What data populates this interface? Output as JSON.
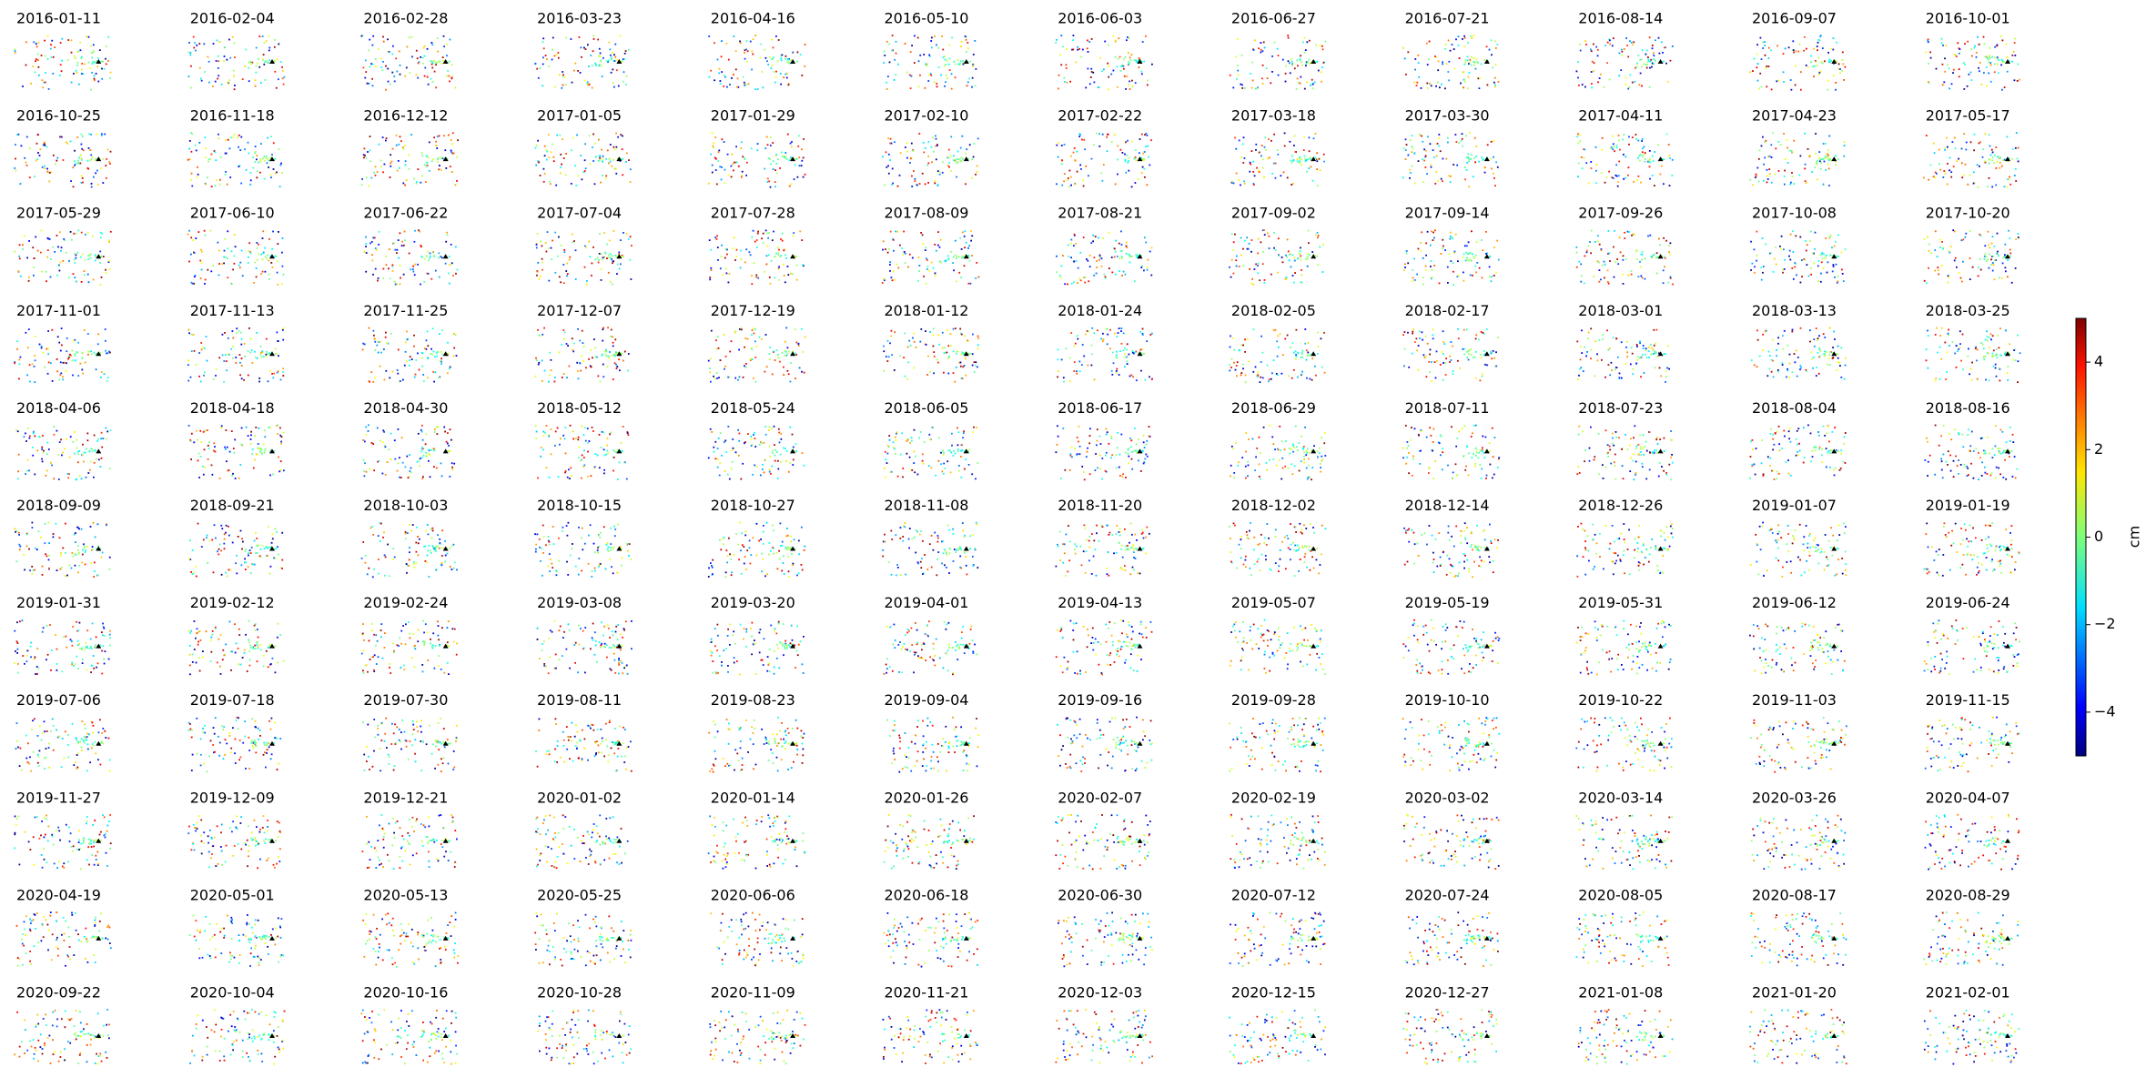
{
  "chart_data": {
    "type": "scatter-grid",
    "titles": [
      "2016-01-11",
      "2016-02-04",
      "2016-02-28",
      "2016-03-23",
      "2016-04-16",
      "2016-05-10",
      "2016-06-03",
      "2016-06-27",
      "2016-07-21",
      "2016-08-14",
      "2016-09-07",
      "2016-10-01",
      "2016-10-25",
      "2016-11-18",
      "2016-12-12",
      "2017-01-05",
      "2017-01-29",
      "2017-02-10",
      "2017-02-22",
      "2017-03-18",
      "2017-03-30",
      "2017-04-11",
      "2017-04-23",
      "2017-05-17",
      "2017-05-29",
      "2017-06-10",
      "2017-06-22",
      "2017-07-04",
      "2017-07-28",
      "2017-08-09",
      "2017-08-21",
      "2017-09-02",
      "2017-09-14",
      "2017-09-26",
      "2017-10-08",
      "2017-10-20",
      "2017-11-01",
      "2017-11-13",
      "2017-11-25",
      "2017-12-07",
      "2017-12-19",
      "2018-01-12",
      "2018-01-24",
      "2018-02-05",
      "2018-02-17",
      "2018-03-01",
      "2018-03-13",
      "2018-03-25",
      "2018-04-06",
      "2018-04-18",
      "2018-04-30",
      "2018-05-12",
      "2018-05-24",
      "2018-06-05",
      "2018-06-17",
      "2018-06-29",
      "2018-07-11",
      "2018-07-23",
      "2018-08-04",
      "2018-08-16",
      "2018-09-09",
      "2018-09-21",
      "2018-10-03",
      "2018-10-15",
      "2018-10-27",
      "2018-11-08",
      "2018-11-20",
      "2018-12-02",
      "2018-12-14",
      "2018-12-26",
      "2019-01-07",
      "2019-01-19",
      "2019-01-31",
      "2019-02-12",
      "2019-02-24",
      "2019-03-08",
      "2019-03-20",
      "2019-04-01",
      "2019-04-13",
      "2019-05-07",
      "2019-05-19",
      "2019-05-31",
      "2019-06-12",
      "2019-06-24",
      "2019-07-06",
      "2019-07-18",
      "2019-07-30",
      "2019-08-11",
      "2019-08-23",
      "2019-09-04",
      "2019-09-16",
      "2019-09-28",
      "2019-10-10",
      "2019-10-22",
      "2019-11-03",
      "2019-11-15",
      "2019-11-27",
      "2019-12-09",
      "2019-12-21",
      "2020-01-02",
      "2020-01-14",
      "2020-01-26",
      "2020-02-07",
      "2020-02-19",
      "2020-03-02",
      "2020-03-14",
      "2020-03-26",
      "2020-04-07",
      "2020-04-19",
      "2020-05-01",
      "2020-05-13",
      "2020-05-25",
      "2020-06-06",
      "2020-06-18",
      "2020-06-30",
      "2020-07-12",
      "2020-07-24",
      "2020-08-05",
      "2020-08-17",
      "2020-08-29",
      "2020-09-22",
      "2020-10-04",
      "2020-10-16",
      "2020-10-28",
      "2020-11-09",
      "2020-11-21",
      "2020-12-03",
      "2020-12-15",
      "2020-12-27",
      "2021-01-08",
      "2021-01-20",
      "2021-02-01"
    ],
    "colormap": "jet",
    "colorbar": {
      "label": "cm",
      "clim": [
        -5,
        5
      ],
      "ticks": [
        {
          "value": -4,
          "label": "−4"
        },
        {
          "value": -2,
          "label": "−2"
        },
        0,
        2,
        4
      ]
    }
  }
}
